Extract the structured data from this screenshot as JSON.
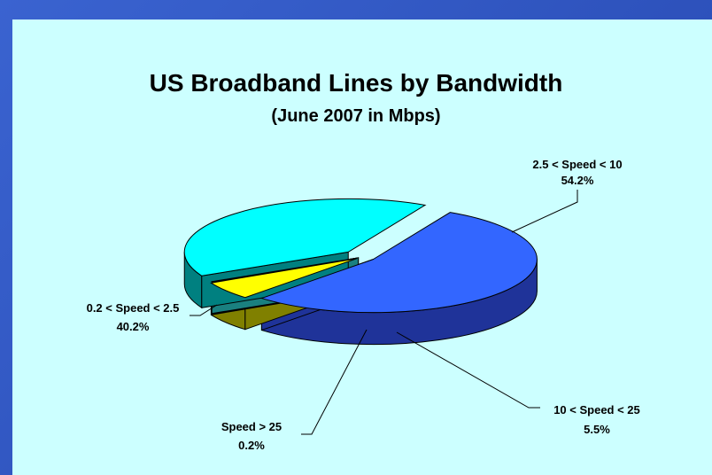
{
  "chart_data": {
    "type": "pie",
    "title": "US Broadband Lines by Bandwidth",
    "subtitle": "(June 2007 in Mbps)",
    "slices": [
      {
        "label": "2.5  < Speed < 10",
        "pct_text": "54.2%",
        "value": 54.2,
        "top_color": "#3366ff",
        "side_color": "#1f3399"
      },
      {
        "label": "10 < Speed < 25",
        "pct_text": "5.5%",
        "value": 5.5,
        "top_color": "#ffff00",
        "side_color": "#808000"
      },
      {
        "label": "Speed > 25",
        "pct_text": "0.2%",
        "value": 0.2,
        "top_color": "#33cccc",
        "side_color": "#1a8080"
      },
      {
        "label": "0.2 < Speed < 2.5",
        "pct_text": "40.2%",
        "value": 40.2,
        "top_color": "#00ffff",
        "side_color": "#008080"
      }
    ]
  }
}
